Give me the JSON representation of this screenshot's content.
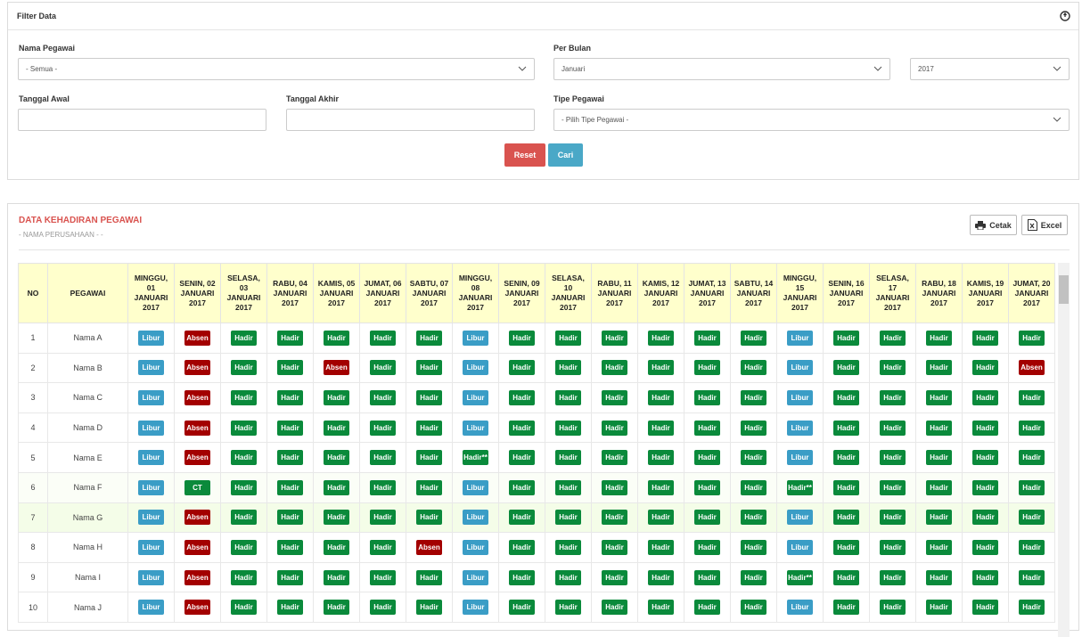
{
  "filter": {
    "title": "Filter Data",
    "nama_pegawai": {
      "label": "Nama Pegawai",
      "value": "- Semua -"
    },
    "per_bulan": {
      "label": "Per Bulan",
      "value": "Januari",
      "year": "2017"
    },
    "tanggal_awal": {
      "label": "Tanggal Awal"
    },
    "tanggal_akhir": {
      "label": "Tanggal Akhir"
    },
    "tipe_pegawai": {
      "label": "Tipe Pegawai",
      "value": "- Pilih Tipe Pegawai -"
    },
    "buttons": [
      "Reset",
      "Cari"
    ]
  },
  "report": {
    "title": "DATA KEHADIRAN PEGAWAI",
    "subtitle": "- NAMA PERUSAHAAN - -",
    "buttons": [
      "Cetak",
      "Excel"
    ]
  },
  "badge_colors": {
    "Libur": "#3a9dc6",
    "Absen": "#a30000",
    "Hadir": "#0a8a3b",
    "Hadir**": "#0a8a3b",
    "CT": "#0a8a3b"
  },
  "table": {
    "headers": [
      "NO",
      "PEGAWAI",
      "MINGGU, 01 JANUARI 2017",
      "SENIN, 02 JANUARI 2017",
      "SELASA, 03 JANUARI 2017",
      "RABU, 04 JANUARI 2017",
      "KAMIS, 05 JANUARI 2017",
      "JUMAT, 06 JANUARI 2017",
      "SABTU, 07 JANUARI 2017",
      "MINGGU, 08 JANUARI 2017",
      "SENIN, 09 JANUARI 2017",
      "SELASA, 10 JANUARI 2017",
      "RABU, 11 JANUARI 2017",
      "KAMIS, 12 JANUARI 2017",
      "JUMAT, 13 JANUARI 2017",
      "SABTU, 14 JANUARI 2017",
      "MINGGU, 15 JANUARI 2017",
      "SENIN, 16 JANUARI 2017",
      "SELASA, 17 JANUARI 2017",
      "RABU, 18 JANUARI 2017",
      "KAMIS, 19 JANUARI 2017",
      "JUMAT, 20 JANUARI 2017"
    ],
    "rows": [
      [
        "1",
        "Nama A",
        "Libur",
        "Absen",
        "Hadir",
        "Hadir",
        "Hadir",
        "Hadir",
        "Hadir",
        "Libur",
        "Hadir",
        "Hadir",
        "Hadir",
        "Hadir",
        "Hadir",
        "Hadir",
        "Libur",
        "Hadir",
        "Hadir",
        "Hadir",
        "Hadir",
        "Hadir"
      ],
      [
        "2",
        "Nama B",
        "Libur",
        "Absen",
        "Hadir",
        "Hadir",
        "Absen",
        "Hadir",
        "Hadir",
        "Libur",
        "Hadir",
        "Hadir",
        "Hadir",
        "Hadir",
        "Hadir",
        "Hadir",
        "Libur",
        "Hadir",
        "Hadir",
        "Hadir",
        "Hadir",
        "Absen"
      ],
      [
        "3",
        "Nama C",
        "Libur",
        "Absen",
        "Hadir",
        "Hadir",
        "Hadir",
        "Hadir",
        "Hadir",
        "Libur",
        "Hadir",
        "Hadir",
        "Hadir",
        "Hadir",
        "Hadir",
        "Hadir",
        "Libur",
        "Hadir",
        "Hadir",
        "Hadir",
        "Hadir",
        "Hadir"
      ],
      [
        "4",
        "Nama D",
        "Libur",
        "Absen",
        "Hadir",
        "Hadir",
        "Hadir",
        "Hadir",
        "Hadir",
        "Libur",
        "Hadir",
        "Hadir",
        "Hadir",
        "Hadir",
        "Hadir",
        "Hadir",
        "Libur",
        "Hadir",
        "Hadir",
        "Hadir",
        "Hadir",
        "Hadir"
      ],
      [
        "5",
        "Nama E",
        "Libur",
        "Absen",
        "Hadir",
        "Hadir",
        "Hadir",
        "Hadir",
        "Hadir",
        "Hadir**",
        "Hadir",
        "Hadir",
        "Hadir",
        "Hadir",
        "Hadir",
        "Hadir",
        "Libur",
        "Hadir",
        "Hadir",
        "Hadir",
        "Hadir",
        "Hadir"
      ],
      [
        "6",
        "Nama F",
        "Libur",
        "CT",
        "Hadir",
        "Hadir",
        "Hadir",
        "Hadir",
        "Hadir",
        "Libur",
        "Hadir",
        "Hadir",
        "Hadir",
        "Hadir",
        "Hadir",
        "Hadir",
        "Hadir**",
        "Hadir",
        "Hadir",
        "Hadir",
        "Hadir",
        "Hadir"
      ],
      [
        "7",
        "Nama G",
        "Libur",
        "Absen",
        "Hadir",
        "Hadir",
        "Hadir",
        "Hadir",
        "Hadir",
        "Libur",
        "Hadir",
        "Hadir",
        "Hadir",
        "Hadir",
        "Hadir",
        "Hadir",
        "Libur",
        "Hadir",
        "Hadir",
        "Hadir",
        "Hadir",
        "Hadir"
      ],
      [
        "8",
        "Nama H",
        "Libur",
        "Absen",
        "Hadir",
        "Hadir",
        "Hadir",
        "Hadir",
        "Absen",
        "Libur",
        "Hadir",
        "Hadir",
        "Hadir",
        "Hadir",
        "Hadir",
        "Hadir",
        "Libur",
        "Hadir",
        "Hadir",
        "Hadir",
        "Hadir",
        "Hadir"
      ],
      [
        "9",
        "Nama I",
        "Libur",
        "Absen",
        "Hadir",
        "Hadir",
        "Hadir",
        "Hadir",
        "Hadir",
        "Libur",
        "Hadir",
        "Hadir",
        "Hadir",
        "Hadir",
        "Hadir",
        "Hadir",
        "Hadir**",
        "Hadir",
        "Hadir",
        "Hadir",
        "Hadir",
        "Hadir"
      ],
      [
        "10",
        "Nama J",
        "Libur",
        "Absen",
        "Hadir",
        "Hadir",
        "Hadir",
        "Hadir",
        "Hadir",
        "Libur",
        "Hadir",
        "Hadir",
        "Hadir",
        "Hadir",
        "Hadir",
        "Hadir",
        "Libur",
        "Hadir",
        "Hadir",
        "Hadir",
        "Hadir",
        "Hadir"
      ]
    ]
  }
}
